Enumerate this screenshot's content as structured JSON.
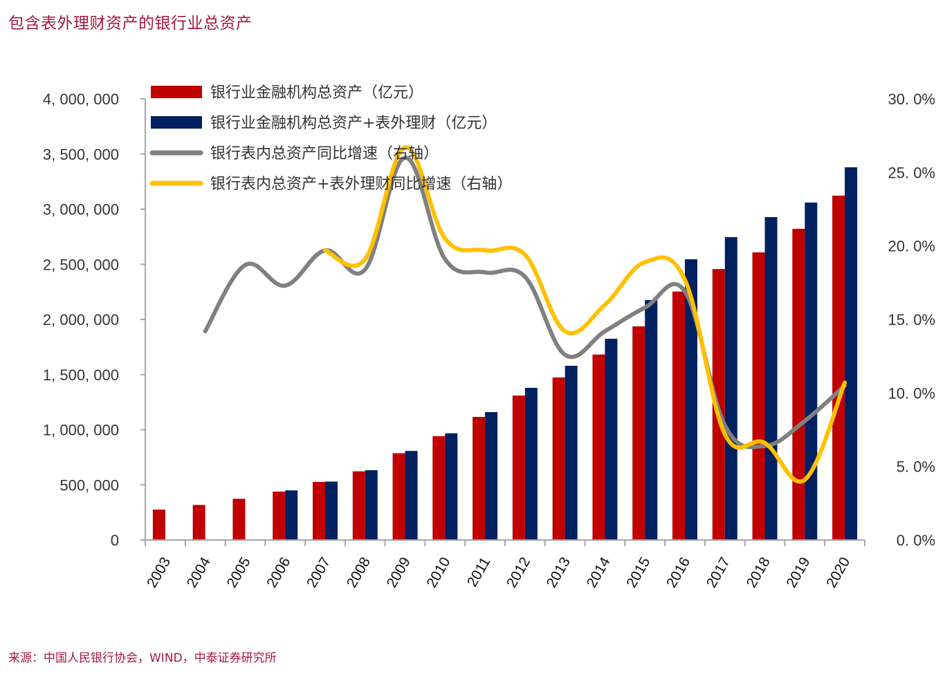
{
  "header": {
    "title": "包含表外理财资产的银行业总资产"
  },
  "footer": {
    "source": "来源：中国人民银行协会，WIND，中泰证券研究所"
  },
  "colors": {
    "bar_onbalance": "#c00000",
    "bar_total": "#002060",
    "line_onbalance": "#808080",
    "line_total": "#ffc000",
    "axis": "#a6a6a6",
    "title": "#a3173f"
  },
  "chart_data": {
    "type": "bar",
    "title": "包含表外理财资产的银行业总资产",
    "xlabel": "",
    "ylabel": "",
    "categories": [
      "2003",
      "2004",
      "2005",
      "2006",
      "2007",
      "2008",
      "2009",
      "2010",
      "2011",
      "2012",
      "2013",
      "2014",
      "2015",
      "2016",
      "2017",
      "2018",
      "2019",
      "2020"
    ],
    "left_axis": {
      "ylim": [
        0,
        4000000
      ],
      "ticks": [
        0,
        500000,
        1000000,
        1500000,
        2000000,
        2500000,
        3000000,
        3500000,
        4000000
      ],
      "tick_labels": [
        "0",
        "500, 000",
        "1, 000, 000",
        "1, 500, 000",
        "2, 000, 000",
        "2, 500, 000",
        "3, 000, 000",
        "3, 500, 000",
        "4, 000, 000"
      ]
    },
    "right_axis": {
      "ylim": [
        0,
        30
      ],
      "ticks": [
        0,
        5,
        10,
        15,
        20,
        25,
        30
      ],
      "tick_labels": [
        "0. 0%",
        "5. 0%",
        "10. 0%",
        "15. 0%",
        "20. 0%",
        "25. 0%",
        "30. 0%"
      ]
    },
    "grid": false,
    "legend_position": "top-left",
    "series": [
      {
        "name": "银行业金融机构总资产（亿元）",
        "type": "bar",
        "axis": "left",
        "values": [
          276000,
          318000,
          374000,
          439000,
          527000,
          623000,
          787000,
          942000,
          1116000,
          1310000,
          1474000,
          1682000,
          1937000,
          2253000,
          2457000,
          2608000,
          2822000,
          3123000
        ]
      },
      {
        "name": "银行业金融机构总资产+表外理财（亿元）",
        "type": "bar",
        "axis": "left",
        "values": [
          null,
          null,
          null,
          450000,
          530000,
          633000,
          808000,
          968000,
          1160000,
          1380000,
          1580000,
          1825000,
          2176000,
          2546000,
          2746000,
          2928000,
          3060000,
          3380000
        ]
      },
      {
        "name": "银行表内总资产同比增速（右轴）",
        "type": "line",
        "axis": "right",
        "values": [
          null,
          14.2,
          18.7,
          17.3,
          19.7,
          18.4,
          26.0,
          19.1,
          18.2,
          17.9,
          12.6,
          14.2,
          15.8,
          16.9,
          7.8,
          6.4,
          8.1,
          10.5
        ]
      },
      {
        "name": "银行表内总资产+表外理财同比增速（右轴）",
        "type": "line",
        "axis": "right",
        "values": [
          null,
          null,
          null,
          null,
          19.7,
          19.1,
          26.7,
          20.5,
          19.7,
          19.4,
          14.2,
          16.0,
          18.9,
          17.7,
          7.2,
          6.6,
          4.1,
          10.7
        ]
      }
    ]
  }
}
